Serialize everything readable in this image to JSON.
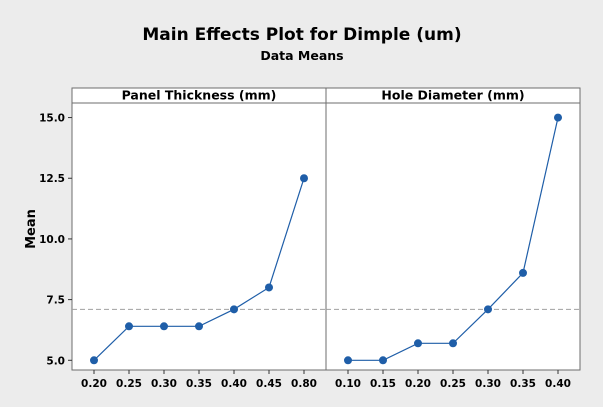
{
  "chart_data": {
    "type": "line",
    "title": "Main Effects Plot for Dimple (um)",
    "subtitle": "Data Means",
    "ylabel": "Mean",
    "ylim": [
      4.6,
      15.6
    ],
    "y_ticks": [
      "5.0",
      "7.5",
      "10.0",
      "12.5",
      "15.0"
    ],
    "reference_line": 7.1,
    "grid": false,
    "colors": {
      "series": "#1f5ea8",
      "marker": "#1f5ea8",
      "reference": "#a0a0a0",
      "background": "#ececec",
      "plot_background": "#ffffff"
    },
    "panels": [
      {
        "label": "Panel Thickness (mm)",
        "categories": [
          "0.20",
          "0.25",
          "0.30",
          "0.35",
          "0.40",
          "0.45",
          "0.80"
        ],
        "values": [
          5.0,
          6.4,
          6.4,
          6.4,
          7.1,
          8.0,
          12.5
        ]
      },
      {
        "label": "Hole Diameter (mm)",
        "categories": [
          "0.10",
          "0.15",
          "0.20",
          "0.25",
          "0.30",
          "0.35",
          "0.40"
        ],
        "values": [
          5.0,
          5.0,
          5.7,
          5.7,
          7.1,
          8.6,
          15.0
        ]
      }
    ]
  }
}
